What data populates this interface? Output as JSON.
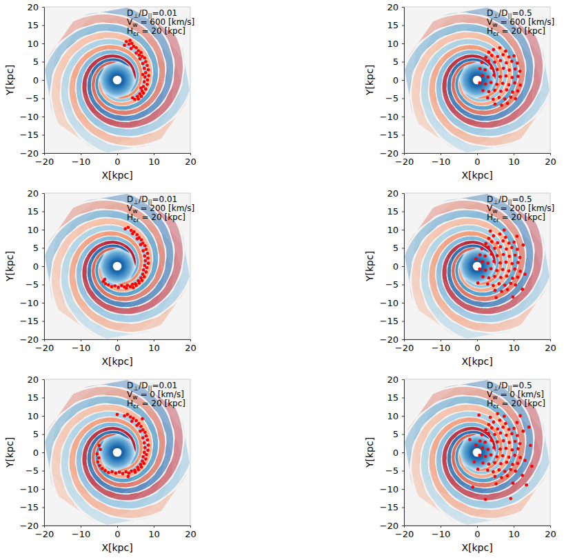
{
  "chart_data": [
    {
      "type": "scatter",
      "x_label": "X[kpc]",
      "y_label": "Y[kpc]",
      "annotations": [
        [
          "D",
          "⊥",
          "/D",
          "||",
          "=0.01"
        ],
        [
          "V",
          "w",
          " = 600 [km/s]"
        ],
        [
          "H",
          "cr",
          " = 20 [kpc]"
        ]
      ],
      "xlim": [
        -20,
        20
      ],
      "ylim": [
        -20,
        20
      ],
      "xticks": [
        {
          "value": -20,
          "label": "−20"
        },
        {
          "value": -10,
          "label": "−10"
        },
        0,
        10,
        20
      ],
      "yticks": [
        {
          "value": -20,
          "label": "−20"
        },
        {
          "value": -15,
          "label": "−15"
        },
        {
          "value": -10,
          "label": "−10"
        },
        {
          "value": -5,
          "label": "−5"
        },
        0,
        5,
        10,
        15,
        20
      ],
      "color": "#ff0000",
      "marker": "circle",
      "x": [
        2.5,
        3.2,
        4.0,
        4.5,
        5.2,
        3.8,
        5.8,
        6.5,
        5.2,
        6.8,
        7.5,
        6.2,
        7.8,
        7.0,
        8.2,
        7.4,
        8.5,
        7.8,
        8.6,
        7.6,
        8.3,
        7.4,
        8.2,
        7.2,
        7.8,
        6.8,
        7.2,
        6.2,
        6.6,
        5.5,
        5.8,
        4.8,
        6.5,
        7.0,
        6.0,
        4.2,
        3.5,
        2.0
      ],
      "values": [
        10.5,
        9.8,
        10.0,
        9.2,
        8.8,
        8.6,
        8.0,
        7.5,
        7.4,
        6.5,
        6.0,
        5.8,
        5.0,
        4.5,
        4.0,
        3.2,
        2.8,
        2.0,
        1.2,
        0.8,
        0.0,
        -0.5,
        -1.2,
        -1.8,
        -2.5,
        -3.0,
        -3.6,
        -3.8,
        -4.5,
        -4.5,
        -5.2,
        -5.3,
        -2.2,
        1.5,
        6.8,
        -4.9,
        10.8,
        9.5
      ]
    },
    {
      "type": "scatter",
      "x_label": "X[kpc]",
      "y_label": "Y[kpc]",
      "annotations": [
        [
          "D",
          "⊥",
          "/D",
          "||",
          "=0.5"
        ],
        [
          "V",
          "w",
          " = 600 [km/s]"
        ],
        [
          "H",
          "cr",
          " = 20 [kpc]"
        ]
      ],
      "xlim": [
        -20,
        20
      ],
      "ylim": [
        -20,
        20
      ],
      "xticks": [
        {
          "value": -20,
          "label": "−20"
        },
        {
          "value": -10,
          "label": "−10"
        },
        0,
        10,
        20
      ],
      "yticks": [
        {
          "value": -20,
          "label": "−20"
        },
        {
          "value": -15,
          "label": "−15"
        },
        {
          "value": -10,
          "label": "−10"
        },
        {
          "value": -5,
          "label": "−5"
        },
        0,
        5,
        10,
        15,
        20
      ],
      "color": "#ff0000",
      "marker": "circle",
      "x": [
        4.5,
        6.2,
        7.8,
        3.2,
        2.4,
        4.0,
        5.6,
        7.1,
        8.7,
        10.1,
        1.3,
        3.1,
        4.8,
        6.4,
        8.0,
        9.5,
        11.0,
        0.8,
        2.2,
        3.9,
        5.5,
        7.2,
        8.8,
        10.4,
        11.7,
        1.5,
        3.0,
        4.6,
        6.3,
        7.9,
        9.6,
        11.2,
        0.7,
        2.3,
        3.8,
        5.4,
        7.0,
        8.7,
        10.3,
        11.8,
        1.6,
        3.2,
        4.8,
        6.5,
        8.1,
        9.7,
        11.1,
        2.9,
        4.4,
        6.0,
        7.6,
        9.2,
        10.5,
        4.9,
        6.7,
        8.3
      ],
      "values": [
        8.3,
        8.8,
        7.9,
        7.6,
        6.2,
        6.7,
        6.4,
        6.9,
        6.3,
        6.6,
        4.8,
        5.2,
        4.9,
        5.3,
        4.7,
        5.1,
        4.6,
        3.1,
        2.8,
        3.3,
        2.9,
        3.2,
        2.7,
        3.0,
        2.4,
        1.2,
        0.8,
        1.3,
        0.9,
        1.1,
        0.7,
        1.0,
        -0.8,
        -1.1,
        -0.7,
        -1.2,
        -0.9,
        -1.3,
        -0.8,
        -1.4,
        -2.9,
        -3.2,
        -2.8,
        -3.1,
        -2.7,
        -3.3,
        -3.0,
        -4.9,
        -5.3,
        -4.8,
        -5.2,
        -4.7,
        -5.1,
        -6.6,
        -6.9,
        -6.4
      ]
    },
    {
      "type": "scatter",
      "x_label": "X[kpc]",
      "y_label": "Y[kpc]",
      "annotations": [
        [
          "D",
          "⊥",
          "/D",
          "||",
          "=0.01"
        ],
        [
          "V",
          "w",
          " = 200 [km/s]"
        ],
        [
          "H",
          "cr",
          " = 20 [kpc]"
        ]
      ],
      "xlim": [
        -20,
        20
      ],
      "ylim": [
        -20,
        20
      ],
      "xticks": [
        {
          "value": -20,
          "label": "−20"
        },
        {
          "value": -10,
          "label": "−10"
        },
        0,
        10,
        20
      ],
      "yticks": [
        {
          "value": -20,
          "label": "−20"
        },
        {
          "value": -15,
          "label": "−15"
        },
        {
          "value": -10,
          "label": "−10"
        },
        {
          "value": -5,
          "label": "−5"
        },
        0,
        5,
        10,
        15,
        20
      ],
      "color": "#ff0000",
      "marker": "circle",
      "x": [
        2.2,
        3.0,
        3.8,
        4.6,
        5.4,
        4.2,
        6.0,
        6.6,
        5.5,
        7.0,
        7.6,
        6.4,
        7.9,
        7.1,
        8.3,
        7.5,
        8.4,
        7.7,
        8.5,
        7.5,
        8.1,
        7.2,
        7.9,
        7.0,
        7.4,
        6.5,
        6.8,
        5.8,
        6.0,
        5.0,
        5.2,
        4.2,
        3.6,
        2.8,
        2.0,
        1.2,
        0.3,
        -0.6,
        -1.5,
        -2.4,
        -3.2,
        -3.8,
        -3.4,
        4.4,
        2.5
      ],
      "values": [
        10.2,
        10.6,
        9.8,
        9.4,
        8.6,
        8.9,
        7.8,
        7.2,
        7.5,
        6.3,
        5.6,
        5.9,
        4.6,
        4.2,
        3.5,
        2.8,
        2.2,
        1.5,
        0.8,
        0.2,
        -0.4,
        -1.0,
        -1.6,
        -2.2,
        -2.9,
        -3.2,
        -3.9,
        -4.0,
        -4.6,
        -4.8,
        -5.3,
        -5.0,
        -5.6,
        -5.2,
        -5.7,
        -5.3,
        -5.8,
        -5.4,
        -5.6,
        -5.1,
        -4.8,
        -4.2,
        -3.6,
        -5.9,
        -6.0
      ]
    },
    {
      "type": "scatter",
      "x_label": "X[kpc]",
      "y_label": "Y[kpc]",
      "annotations": [
        [
          "D",
          "⊥",
          "/D",
          "||",
          "=0.5"
        ],
        [
          "V",
          "w",
          " = 200 [km/s]"
        ],
        [
          "H",
          "cr",
          " = 20 [kpc]"
        ]
      ],
      "xlim": [
        -20,
        20
      ],
      "ylim": [
        -20,
        20
      ],
      "xticks": [
        {
          "value": -20,
          "label": "−20"
        },
        {
          "value": -10,
          "label": "−10"
        },
        0,
        10,
        20
      ],
      "yticks": [
        {
          "value": -20,
          "label": "−20"
        },
        {
          "value": -15,
          "label": "−15"
        },
        {
          "value": -10,
          "label": "−10"
        },
        {
          "value": -5,
          "label": "−5"
        },
        0,
        5,
        10,
        15,
        20
      ],
      "color": "#ff0000",
      "marker": "circle",
      "x": [
        4.5,
        6.2,
        7.8,
        3.2,
        2.4,
        4.0,
        5.6,
        7.1,
        8.7,
        10.1,
        1.3,
        3.1,
        4.8,
        6.4,
        8.0,
        9.5,
        11.0,
        0.8,
        2.2,
        3.9,
        5.5,
        7.2,
        8.8,
        10.4,
        11.7,
        1.5,
        3.0,
        4.6,
        6.3,
        7.9,
        9.6,
        11.2,
        0.7,
        2.3,
        3.8,
        5.4,
        7.0,
        8.7,
        10.3,
        11.8,
        1.6,
        3.2,
        4.8,
        6.5,
        8.1,
        9.7,
        11.1,
        2.9,
        4.4,
        6.0,
        7.6,
        9.2,
        10.5,
        4.9,
        6.7,
        8.3,
        12.6,
        13.1,
        12.4,
        9.8,
        5.2,
        0.2,
        -0.3,
        3.6,
        7.4,
        10.9
      ],
      "values": [
        8.3,
        8.8,
        7.9,
        7.6,
        6.2,
        6.7,
        6.4,
        6.9,
        6.3,
        6.6,
        4.8,
        5.2,
        4.9,
        5.3,
        4.7,
        5.1,
        4.6,
        3.1,
        2.8,
        3.3,
        2.9,
        3.2,
        2.7,
        3.0,
        2.4,
        1.2,
        0.8,
        1.3,
        0.9,
        1.1,
        0.7,
        1.0,
        -0.8,
        -1.1,
        -0.7,
        -1.2,
        -0.9,
        -1.3,
        -0.8,
        -1.4,
        -2.9,
        -3.2,
        -2.8,
        -3.1,
        -2.7,
        -3.3,
        -3.0,
        -4.9,
        -5.3,
        -4.8,
        -5.2,
        -4.7,
        -5.1,
        -6.6,
        -6.9,
        -6.4,
        5.8,
        -2.2,
        -6.3,
        -8.4,
        -8.6,
        -4.6,
        2.0,
        9.6,
        9.9,
        8.2
      ]
    },
    {
      "type": "scatter",
      "x_label": "X[kpc]",
      "y_label": "Y[kpc]",
      "annotations": [
        [
          "D",
          "⊥",
          "/D",
          "||",
          "=0.01"
        ],
        [
          "V",
          "w",
          " = 0 [km/s]"
        ],
        [
          "H",
          "cr",
          " = 20 [kpc]"
        ]
      ],
      "xlim": [
        -20,
        20
      ],
      "ylim": [
        -20,
        20
      ],
      "xticks": [
        {
          "value": -20,
          "label": "−20"
        },
        {
          "value": -10,
          "label": "−10"
        },
        0,
        10,
        20
      ],
      "yticks": [
        {
          "value": -20,
          "label": "−20"
        },
        {
          "value": -15,
          "label": "−15"
        },
        {
          "value": -10,
          "label": "−10"
        },
        {
          "value": -5,
          "label": "−5"
        },
        0,
        5,
        10,
        15,
        20
      ],
      "color": "#ff0000",
      "marker": "circle",
      "x": [
        2.0,
        2.8,
        3.6,
        4.4,
        5.2,
        4.0,
        5.9,
        6.5,
        5.4,
        7.0,
        7.6,
        6.3,
        7.9,
        7.0,
        8.3,
        7.4,
        8.5,
        7.6,
        8.4,
        7.4,
        8.0,
        7.1,
        7.8,
        6.9,
        7.3,
        6.4,
        6.6,
        5.6,
        5.8,
        4.8,
        4.9,
        3.9,
        3.2,
        2.4,
        1.5,
        0.6,
        -0.4,
        -1.4,
        -2.4,
        -3.3,
        -4.1,
        -4.8,
        -5.3,
        -5.0,
        -5.5,
        -4.6,
        -4.9,
        0.0,
        6.9,
        3.0
      ],
      "values": [
        10.0,
        10.4,
        9.7,
        9.3,
        8.7,
        8.5,
        7.9,
        7.1,
        7.4,
        6.2,
        5.5,
        5.8,
        4.5,
        4.0,
        3.4,
        2.6,
        2.0,
        1.3,
        0.6,
        0.0,
        -0.6,
        -1.2,
        -1.8,
        -2.4,
        -3.0,
        -3.3,
        -4.0,
        -4.1,
        -4.7,
        -4.9,
        -5.4,
        -5.1,
        -5.7,
        -5.3,
        -5.8,
        -5.4,
        -5.7,
        -5.3,
        -5.5,
        -5.0,
        -4.4,
        -3.6,
        -2.6,
        -1.5,
        -0.4,
        0.8,
        1.9,
        10.4,
        9.2,
        -6.6
      ]
    },
    {
      "type": "scatter",
      "x_label": "X[kpc]",
      "y_label": "Y[kpc]",
      "annotations": [
        [
          "D",
          "⊥",
          "/D",
          "||",
          "=0.5"
        ],
        [
          "V",
          "w",
          " = 0 [km/s]"
        ],
        [
          "H",
          "cr",
          " = 20 [kpc]"
        ]
      ],
      "xlim": [
        -20,
        20
      ],
      "ylim": [
        -20,
        20
      ],
      "xticks": [
        {
          "value": -20,
          "label": "−20"
        },
        {
          "value": -10,
          "label": "−10"
        },
        0,
        10,
        20
      ],
      "yticks": [
        {
          "value": -20,
          "label": "−20"
        },
        {
          "value": -15,
          "label": "−15"
        },
        {
          "value": -10,
          "label": "−10"
        },
        {
          "value": -5,
          "label": "−5"
        },
        0,
        5,
        10,
        15,
        20
      ],
      "color": "#ff0000",
      "marker": "circle",
      "x": [
        4.5,
        6.2,
        7.8,
        3.2,
        2.4,
        4.0,
        5.6,
        7.1,
        8.7,
        10.1,
        1.3,
        3.1,
        4.8,
        6.4,
        8.0,
        9.5,
        11.0,
        0.8,
        2.2,
        3.9,
        5.5,
        7.2,
        8.8,
        10.4,
        11.7,
        1.5,
        3.0,
        4.6,
        6.3,
        7.9,
        9.6,
        11.2,
        0.7,
        2.3,
        3.8,
        5.4,
        7.0,
        8.7,
        10.3,
        11.8,
        1.6,
        3.2,
        4.8,
        6.5,
        8.1,
        9.7,
        11.1,
        2.9,
        4.4,
        6.0,
        7.6,
        9.2,
        10.5,
        4.9,
        6.7,
        8.3,
        12.6,
        13.1,
        12.4,
        9.8,
        5.2,
        0.2,
        -0.3,
        3.6,
        7.4,
        10.9,
        14.2,
        15.0,
        13.5,
        9.2,
        2.3,
        -1.2,
        -2.0,
        0.5,
        5.6,
        11.8,
        -0.8,
        14.6
      ],
      "values": [
        8.3,
        8.8,
        7.9,
        7.6,
        6.2,
        6.7,
        6.4,
        6.9,
        6.3,
        6.6,
        4.8,
        5.2,
        4.9,
        5.3,
        4.7,
        5.1,
        4.6,
        3.1,
        2.8,
        3.3,
        2.9,
        3.2,
        2.7,
        3.0,
        2.4,
        1.2,
        0.8,
        1.3,
        0.9,
        1.1,
        0.7,
        1.0,
        -0.8,
        -1.1,
        -0.7,
        -1.2,
        -0.9,
        -1.3,
        -0.8,
        -1.4,
        -2.9,
        -3.2,
        -2.8,
        -3.1,
        -2.7,
        -3.3,
        -3.0,
        -4.9,
        -5.3,
        -4.8,
        -5.2,
        -4.7,
        -5.1,
        -6.6,
        -6.9,
        -6.4,
        5.8,
        -2.2,
        -6.3,
        -8.4,
        -8.6,
        -4.6,
        2.0,
        9.6,
        9.9,
        8.2,
        6.9,
        -3.8,
        -8.9,
        -12.6,
        -12.9,
        -9.5,
        3.5,
        10.2,
        10.6,
        10.0,
        -2.6,
        1.9
      ]
    }
  ]
}
